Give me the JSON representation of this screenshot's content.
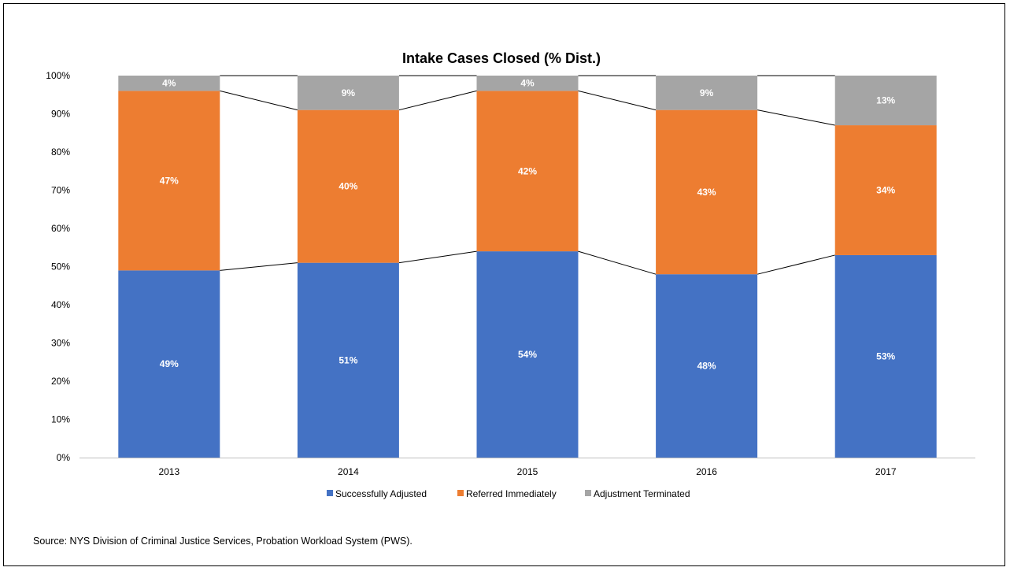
{
  "chart_data": {
    "type": "bar",
    "stacked": true,
    "title": "Intake Cases Closed (% Dist.)",
    "xlabel": "",
    "ylabel": "",
    "ylim": [
      0,
      100
    ],
    "y_ticks": [
      "0%",
      "10%",
      "20%",
      "30%",
      "40%",
      "50%",
      "60%",
      "70%",
      "80%",
      "90%",
      "100%"
    ],
    "categories": [
      "2013",
      "2014",
      "2015",
      "2016",
      "2017"
    ],
    "series": [
      {
        "name": "Successfully Adjusted",
        "color": "#4472C4",
        "values": [
          49,
          51,
          54,
          48,
          53
        ],
        "labels": [
          "49%",
          "51%",
          "54%",
          "48%",
          "53%"
        ]
      },
      {
        "name": "Referred Immediately",
        "color": "#ED7D31",
        "values": [
          47,
          40,
          42,
          43,
          34
        ],
        "labels": [
          "47%",
          "40%",
          "42%",
          "43%",
          "34%"
        ]
      },
      {
        "name": "Adjustment Terminated",
        "color": "#A5A5A5",
        "values": [
          4,
          9,
          4,
          9,
          13
        ],
        "labels": [
          "4%",
          "9%",
          "4%",
          "9%",
          "13%"
        ]
      }
    ],
    "series_lines": true,
    "legend_position": "bottom",
    "grid": false
  },
  "source_note": "Source: NYS Division of Criminal Justice Services, Probation Workload System (PWS)."
}
